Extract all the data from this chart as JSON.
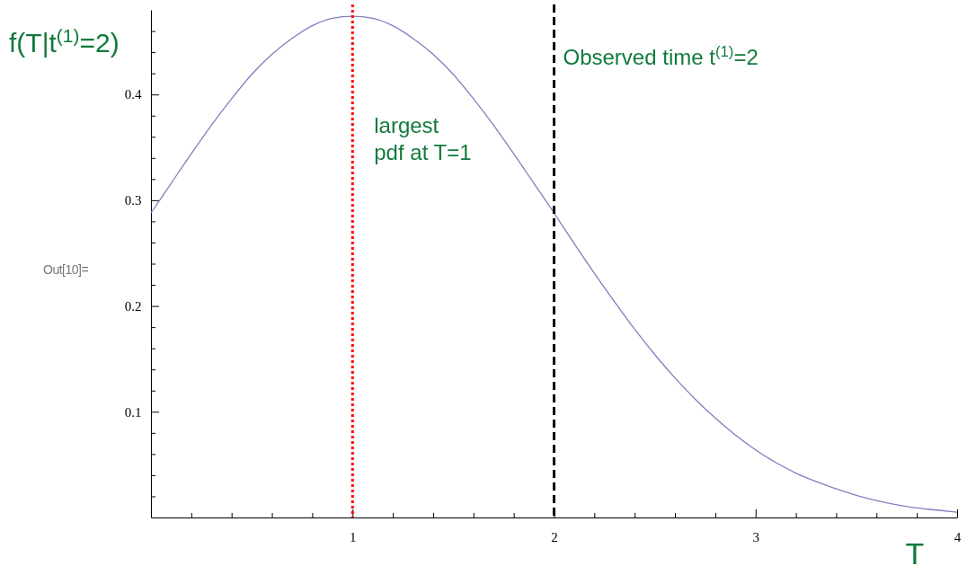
{
  "chart_data": {
    "type": "line",
    "ylabel": "f(T|t$^{(1)}$=2)",
    "xlabel": "T",
    "x": [
      0,
      0.1,
      0.2,
      0.3,
      0.4,
      0.5,
      0.6,
      0.7,
      0.8,
      0.9,
      1,
      1.1,
      1.2,
      1.3,
      1.4,
      1.5,
      1.6,
      1.7,
      1.8,
      1.9,
      2,
      2.1,
      2.2,
      2.3,
      2.4,
      2.5,
      2.6,
      2.7,
      2.8,
      2.9,
      3,
      3.1,
      3.2,
      3.3,
      3.4,
      3.5,
      3.6,
      3.7,
      3.8,
      3.9,
      4
    ],
    "series": [
      {
        "color": "#7f7fbf",
        "values": [
          0.288,
          0.316,
          0.344,
          0.371,
          0.396,
          0.419,
          0.438,
          0.453,
          0.465,
          0.472,
          0.474,
          0.472,
          0.465,
          0.453,
          0.438,
          0.419,
          0.396,
          0.371,
          0.344,
          0.316,
          0.288,
          0.259,
          0.231,
          0.204,
          0.178,
          0.154,
          0.132,
          0.112,
          0.094,
          0.078,
          0.064,
          0.052,
          0.042,
          0.034,
          0.027,
          0.021,
          0.016,
          0.012,
          0.009,
          0.007,
          0.005
        ]
      }
    ],
    "xlim": [
      0,
      4
    ],
    "ylim": [
      0,
      0.48
    ],
    "xticks": [
      {
        "value": 0.2,
        "label": null
      },
      {
        "value": 0.4,
        "label": null
      },
      {
        "value": 0.6,
        "label": null
      },
      {
        "value": 0.8,
        "label": null
      },
      1,
      {
        "value": 1.2,
        "label": null
      },
      {
        "value": 1.4,
        "label": null
      },
      {
        "value": 1.6,
        "label": null
      },
      {
        "value": 1.8,
        "label": null
      },
      2,
      {
        "value": 2.2,
        "label": null
      },
      {
        "value": 2.4,
        "label": null
      },
      {
        "value": 2.6,
        "label": null
      },
      {
        "value": 2.8,
        "label": null
      },
      3,
      {
        "value": 3.2,
        "label": null
      },
      {
        "value": 3.4,
        "label": null
      },
      {
        "value": 3.6,
        "label": null
      },
      {
        "value": 3.8,
        "label": null
      },
      4
    ],
    "yticks": [
      {
        "value": 0.02,
        "label": null
      },
      {
        "value": 0.04,
        "label": null
      },
      {
        "value": 0.06,
        "label": null
      },
      {
        "value": 0.08,
        "label": null
      },
      0.1,
      {
        "value": 0.12,
        "label": null
      },
      {
        "value": 0.14,
        "label": null
      },
      {
        "value": 0.16,
        "label": null
      },
      {
        "value": 0.18,
        "label": null
      },
      0.2,
      {
        "value": 0.22,
        "label": null
      },
      {
        "value": 0.24,
        "label": null
      },
      {
        "value": 0.26,
        "label": null
      },
      {
        "value": 0.28,
        "label": null
      },
      0.3,
      {
        "value": 0.32,
        "label": null
      },
      {
        "value": 0.34,
        "label": null
      },
      {
        "value": 0.36,
        "label": null
      },
      {
        "value": 0.38,
        "label": null
      },
      0.4,
      {
        "value": 0.42,
        "label": null
      },
      {
        "value": 0.44,
        "label": null
      },
      {
        "value": 0.46,
        "label": null
      }
    ],
    "ref_lines": [
      {
        "axis": "x",
        "value": 1,
        "label": "largest pdf at T=1",
        "color": "#ff0000",
        "line_style": "dotted"
      },
      {
        "axis": "x",
        "value": 2,
        "label": "Observed time t$^{(1)}$=2",
        "color": "#000000",
        "line_style": "dashed"
      }
    ],
    "annotations": [
      "Out[10]="
    ],
    "grid": false,
    "marker": "none",
    "line_style": "solid"
  }
}
